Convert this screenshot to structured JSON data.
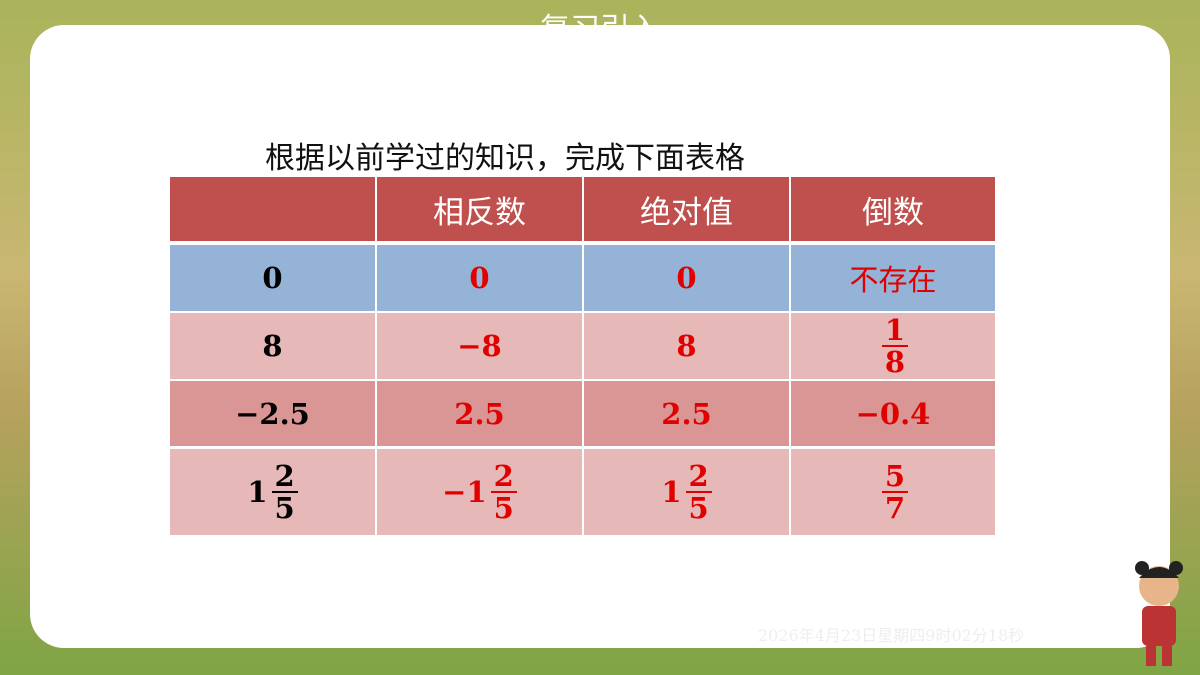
{
  "slide_title": "复习引入",
  "instruction": "根据以前学过的知识，完成下面表格",
  "table": {
    "header": [
      "相反数",
      "绝对值",
      "倒数"
    ],
    "rows": [
      [
        "0",
        "0",
        "0",
        "不存在"
      ],
      [
        "8",
        "−8",
        "8",
        {
          "num": "1",
          "den": "8"
        }
      ],
      [
        "−2.5",
        "2.5",
        "2.5",
        "−0.4"
      ],
      [
        {
          "int": "1",
          "num": "2",
          "den": "5"
        },
        {
          "int": "−1",
          "num": "2",
          "den": "5"
        },
        {
          "int": "1",
          "num": "2",
          "den": "5"
        },
        {
          "num": "5",
          "den": "7"
        }
      ]
    ]
  },
  "timestamp": "2026年4月23日星期四9时02分18秒"
}
